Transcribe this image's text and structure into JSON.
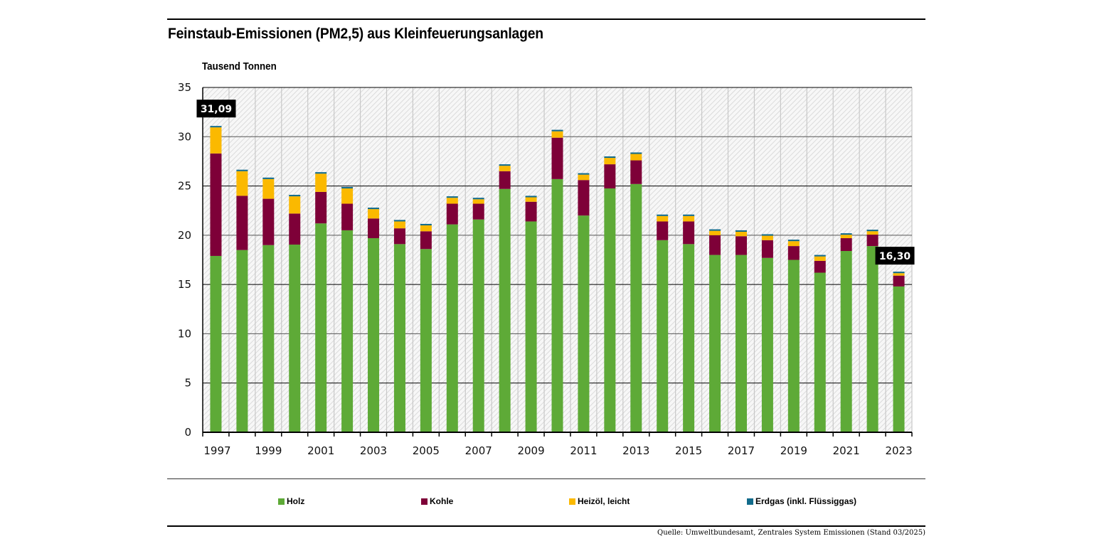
{
  "header": {
    "title": "Feinstaub-Emissionen (PM2,5) aus Kleinfeuerungsanlagen",
    "unit_label": "Tausend Tonnen"
  },
  "footer": {
    "source": "Quelle: Umweltbundesamt, Zentrales System Emissionen (Stand 03/2025)"
  },
  "colors": {
    "holz": "#5eaa37",
    "kohle": "#7e0038",
    "heizoel": "#fbb900",
    "erdgas": "#126b8b",
    "callout_bg": "#000000",
    "callout_text": "#ffffff"
  },
  "chart_data": {
    "type": "bar",
    "stacked": true,
    "title": "Feinstaub-Emissionen (PM2,5) aus Kleinfeuerungsanlagen",
    "ylabel": "Tausend Tonnen",
    "xlabel": "",
    "ylim": [
      0,
      35
    ],
    "yticks": [
      0,
      5,
      10,
      15,
      20,
      25,
      30,
      35
    ],
    "grid": true,
    "legend_position": "bottom",
    "categories": [
      "1997",
      "1998",
      "1999",
      "2000",
      "2001",
      "2002",
      "2003",
      "2004",
      "2005",
      "2006",
      "2007",
      "2008",
      "2009",
      "2010",
      "2011",
      "2012",
      "2013",
      "2014",
      "2015",
      "2016",
      "2017",
      "2018",
      "2019",
      "2020",
      "2021",
      "2022",
      "2023"
    ],
    "xtick_labels": [
      "1997",
      "1999",
      "2001",
      "2003",
      "2005",
      "2007",
      "2009",
      "2011",
      "2013",
      "2015",
      "2017",
      "2019",
      "2021",
      "2023"
    ],
    "series": [
      {
        "name": "Holz",
        "key": "holz",
        "values": [
          17.9,
          18.5,
          19.0,
          19.05,
          21.2,
          20.5,
          19.7,
          19.1,
          18.6,
          21.1,
          21.6,
          24.7,
          21.4,
          25.7,
          22.0,
          24.75,
          25.2,
          19.5,
          19.1,
          18.0,
          18.0,
          17.7,
          17.5,
          16.2,
          18.4,
          18.9,
          14.8
        ]
      },
      {
        "name": "Kohle",
        "key": "kohle",
        "values": [
          10.4,
          5.5,
          4.7,
          3.15,
          3.2,
          2.7,
          2.0,
          1.6,
          1.8,
          2.1,
          1.6,
          1.8,
          2.0,
          4.2,
          3.6,
          2.45,
          2.4,
          1.9,
          2.3,
          2.0,
          1.9,
          1.8,
          1.4,
          1.2,
          1.3,
          1.16,
          1.1
        ]
      },
      {
        "name": "Heizöl, leicht",
        "key": "heizoel",
        "values": [
          2.65,
          2.5,
          2.0,
          1.75,
          1.85,
          1.55,
          0.95,
          0.7,
          0.6,
          0.6,
          0.45,
          0.55,
          0.45,
          0.65,
          0.55,
          0.65,
          0.65,
          0.55,
          0.55,
          0.45,
          0.45,
          0.45,
          0.5,
          0.45,
          0.35,
          0.35,
          0.25
        ]
      },
      {
        "name": "Erdgas (inkl. Flüssiggas)",
        "key": "erdgas",
        "values": [
          0.14,
          0.15,
          0.15,
          0.15,
          0.15,
          0.15,
          0.15,
          0.15,
          0.15,
          0.15,
          0.15,
          0.15,
          0.15,
          0.15,
          0.15,
          0.15,
          0.15,
          0.15,
          0.15,
          0.15,
          0.15,
          0.15,
          0.15,
          0.15,
          0.15,
          0.15,
          0.15
        ]
      }
    ],
    "annotations": [
      {
        "category": "1997",
        "text": "31,09",
        "value": 31.09
      },
      {
        "category": "2023",
        "text": "16,30",
        "value": 16.3
      }
    ]
  }
}
